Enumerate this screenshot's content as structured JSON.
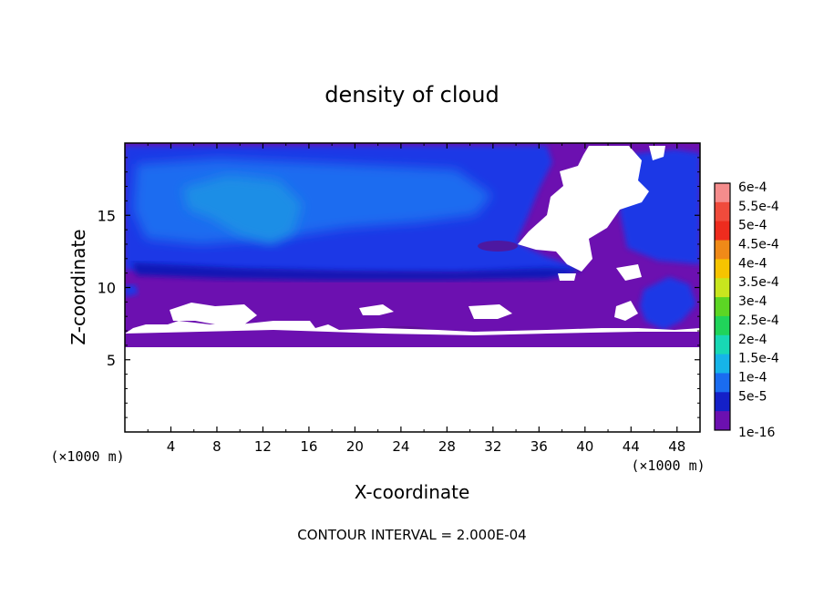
{
  "chart_data": {
    "type": "heatmap",
    "title": "density of cloud",
    "xlabel": "X-coordinate",
    "ylabel": "Z-coordinate",
    "x_unit": "(×1000 m)",
    "z_unit": "(×1000 m)",
    "xlim": [
      0,
      50
    ],
    "ylim": [
      0,
      20
    ],
    "x_ticks": [
      4,
      8,
      12,
      16,
      20,
      24,
      28,
      32,
      36,
      40,
      44,
      48
    ],
    "y_ticks": [
      5,
      10,
      15
    ],
    "footer": "CONTOUR INTERVAL = 2.000E-04",
    "colorbar": {
      "labels": [
        "6e-4",
        "5.5e-4",
        "5e-4",
        "4.5e-4",
        "4e-4",
        "3.5e-4",
        "3e-4",
        "2.5e-4",
        "2e-4",
        "1.5e-4",
        "1e-4",
        "5e-5",
        "1e-16"
      ],
      "colors": [
        "#f58c8c",
        "#f04b3c",
        "#ee2c1e",
        "#f08a18",
        "#f6c400",
        "#c8e61e",
        "#5cd624",
        "#20d45a",
        "#18d8b4",
        "#16b4e8",
        "#1a6cf0",
        "#1420c8",
        "#6c10b0"
      ]
    },
    "field_colors": {
      "background_low": "#6c10b0",
      "mid": "#1a38e6",
      "high": "#1c6cf0",
      "peak": "#1c8ee6",
      "dark": "#1018b4",
      "empty": "#ffffff"
    }
  }
}
